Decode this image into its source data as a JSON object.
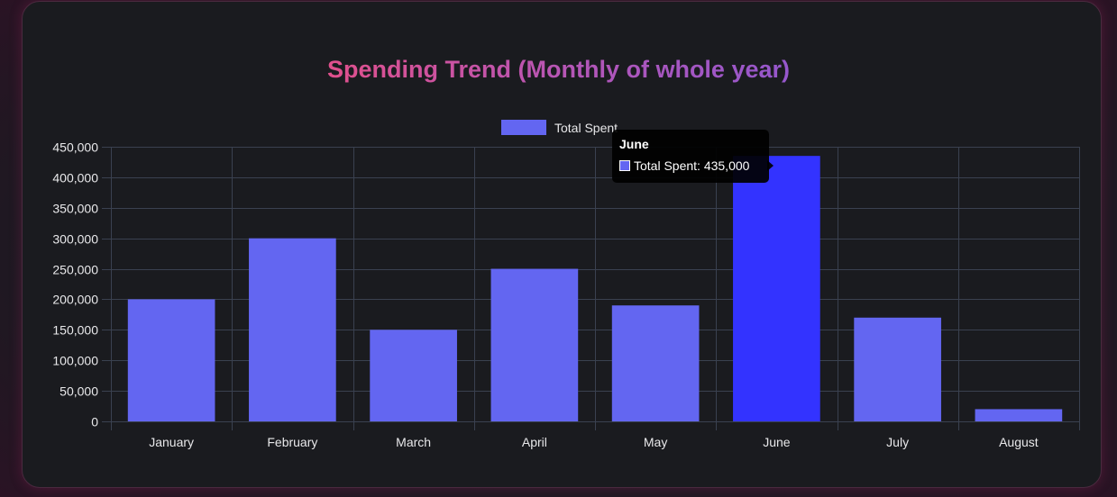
{
  "colors": {
    "bar": "#6366f1",
    "bar_active": "#3333ff",
    "grid": "#3a4150",
    "tick_text": "#e8e8ea"
  },
  "chart_data": {
    "type": "bar",
    "title": "Spending Trend (Monthly of whole year)",
    "categories": [
      "January",
      "February",
      "March",
      "April",
      "May",
      "June",
      "July",
      "August"
    ],
    "series": [
      {
        "name": "Total Spent",
        "values": [
          200000,
          300000,
          150000,
          250000,
          190000,
          435000,
          170000,
          20000
        ]
      }
    ],
    "ylim": [
      0,
      450000
    ],
    "yticks": [
      0,
      50000,
      100000,
      150000,
      200000,
      250000,
      300000,
      350000,
      400000,
      450000
    ],
    "ytick_labels": [
      "0",
      "50,000",
      "100,000",
      "150,000",
      "200,000",
      "250,000",
      "300,000",
      "350,000",
      "400,000",
      "450,000"
    ],
    "grid": true,
    "legend_position": "top-center",
    "active_category": "June"
  },
  "tooltip": {
    "title": "June",
    "label": "Total Spent: 435,000"
  }
}
